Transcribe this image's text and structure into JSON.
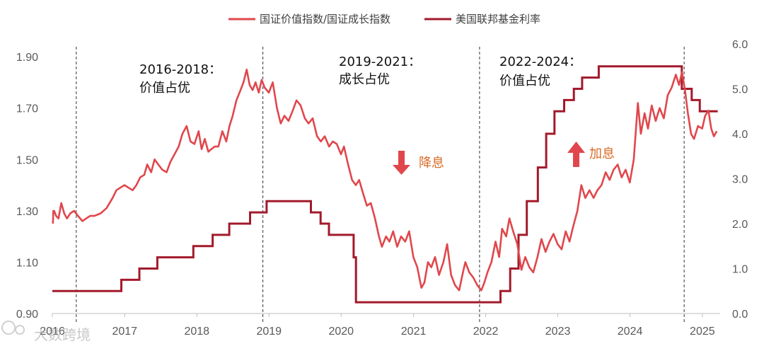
{
  "chart_data": {
    "type": "line",
    "colors": {
      "ratio": "#e0474c",
      "fed": "#a21a2b",
      "arrow_down": "#e0474c",
      "arrow_up": "#e0474c",
      "signal_text": "#d86b25"
    },
    "series": [
      {
        "name": "国证价值指数/国证成长指数",
        "axis": "left",
        "points": [
          [
            "2016-01-04",
            1.25
          ],
          [
            "2016-01-06",
            1.3
          ],
          [
            "2016-01-10",
            1.3
          ],
          [
            "2016-01-20",
            1.28
          ],
          [
            "2016-02-01",
            1.27
          ],
          [
            "2016-02-15",
            1.33
          ],
          [
            "2016-03-01",
            1.29
          ],
          [
            "2016-03-15",
            1.27
          ],
          [
            "2016-04-01",
            1.29
          ],
          [
            "2016-04-20",
            1.3
          ],
          [
            "2016-05-10",
            1.28
          ],
          [
            "2016-06-01",
            1.26
          ],
          [
            "2016-06-20",
            1.27
          ],
          [
            "2016-07-10",
            1.28
          ],
          [
            "2016-08-01",
            1.28
          ],
          [
            "2016-09-01",
            1.29
          ],
          [
            "2016-10-01",
            1.31
          ],
          [
            "2016-11-01",
            1.35
          ],
          [
            "2016-11-20",
            1.38
          ],
          [
            "2016-12-10",
            1.39
          ],
          [
            "2016-12-31",
            1.4
          ],
          [
            "2017-01-20",
            1.39
          ],
          [
            "2017-02-10",
            1.38
          ],
          [
            "2017-03-01",
            1.4
          ],
          [
            "2017-03-20",
            1.43
          ],
          [
            "2017-04-10",
            1.44
          ],
          [
            "2017-04-25",
            1.48
          ],
          [
            "2017-05-15",
            1.45
          ],
          [
            "2017-06-01",
            1.5
          ],
          [
            "2017-06-20",
            1.48
          ],
          [
            "2017-07-10",
            1.46
          ],
          [
            "2017-08-01",
            1.45
          ],
          [
            "2017-08-20",
            1.49
          ],
          [
            "2017-09-10",
            1.52
          ],
          [
            "2017-10-01",
            1.55
          ],
          [
            "2017-10-20",
            1.6
          ],
          [
            "2017-11-10",
            1.63
          ],
          [
            "2017-11-30",
            1.57
          ],
          [
            "2017-12-20",
            1.56
          ],
          [
            "2018-01-10",
            1.61
          ],
          [
            "2018-01-25",
            1.54
          ],
          [
            "2018-02-10",
            1.58
          ],
          [
            "2018-02-28",
            1.53
          ],
          [
            "2018-03-15",
            1.54
          ],
          [
            "2018-04-01",
            1.55
          ],
          [
            "2018-04-20",
            1.55
          ],
          [
            "2018-05-10",
            1.61
          ],
          [
            "2018-05-30",
            1.57
          ],
          [
            "2018-06-15",
            1.63
          ],
          [
            "2018-07-01",
            1.67
          ],
          [
            "2018-07-20",
            1.73
          ],
          [
            "2018-08-10",
            1.77
          ],
          [
            "2018-08-25",
            1.8
          ],
          [
            "2018-09-10",
            1.85
          ],
          [
            "2018-09-25",
            1.79
          ],
          [
            "2018-10-10",
            1.77
          ],
          [
            "2018-10-25",
            1.8
          ],
          [
            "2018-11-10",
            1.76
          ],
          [
            "2018-11-25",
            1.81
          ],
          [
            "2018-12-10",
            1.78
          ],
          [
            "2018-12-31",
            1.76
          ],
          [
            "2019-01-20",
            1.8
          ],
          [
            "2019-02-10",
            1.7
          ],
          [
            "2019-03-01",
            1.64
          ],
          [
            "2019-03-20",
            1.67
          ],
          [
            "2019-04-10",
            1.65
          ],
          [
            "2019-05-01",
            1.69
          ],
          [
            "2019-05-20",
            1.73
          ],
          [
            "2019-06-10",
            1.71
          ],
          [
            "2019-07-01",
            1.66
          ],
          [
            "2019-07-20",
            1.64
          ],
          [
            "2019-08-10",
            1.66
          ],
          [
            "2019-09-01",
            1.59
          ],
          [
            "2019-09-20",
            1.57
          ],
          [
            "2019-10-10",
            1.59
          ],
          [
            "2019-11-01",
            1.55
          ],
          [
            "2019-11-20",
            1.57
          ],
          [
            "2019-12-10",
            1.56
          ],
          [
            "2019-12-31",
            1.52
          ],
          [
            "2020-01-15",
            1.55
          ],
          [
            "2020-02-05",
            1.48
          ],
          [
            "2020-02-25",
            1.42
          ],
          [
            "2020-03-15",
            1.4
          ],
          [
            "2020-04-01",
            1.42
          ],
          [
            "2020-04-20",
            1.37
          ],
          [
            "2020-05-10",
            1.32
          ],
          [
            "2020-05-30",
            1.33
          ],
          [
            "2020-06-20",
            1.27
          ],
          [
            "2020-07-10",
            1.2
          ],
          [
            "2020-07-25",
            1.16
          ],
          [
            "2020-08-15",
            1.2
          ],
          [
            "2020-09-01",
            1.18
          ],
          [
            "2020-09-20",
            1.22
          ],
          [
            "2020-10-10",
            1.16
          ],
          [
            "2020-10-30",
            1.2
          ],
          [
            "2020-11-20",
            1.18
          ],
          [
            "2020-12-10",
            1.22
          ],
          [
            "2020-12-31",
            1.12
          ],
          [
            "2021-01-20",
            1.08
          ],
          [
            "2021-02-10",
            1.0
          ],
          [
            "2021-02-25",
            1.02
          ],
          [
            "2021-03-15",
            1.1
          ],
          [
            "2021-04-01",
            1.08
          ],
          [
            "2021-04-20",
            1.12
          ],
          [
            "2021-05-10",
            1.05
          ],
          [
            "2021-06-01",
            1.1
          ],
          [
            "2021-06-20",
            1.17
          ],
          [
            "2021-07-10",
            1.05
          ],
          [
            "2021-07-30",
            1.01
          ],
          [
            "2021-08-20",
            0.99
          ],
          [
            "2021-09-05",
            1.05
          ],
          [
            "2021-09-20",
            1.1
          ],
          [
            "2021-10-10",
            1.06
          ],
          [
            "2021-10-30",
            1.04
          ],
          [
            "2021-11-20",
            1.01
          ],
          [
            "2021-12-10",
            0.99
          ],
          [
            "2021-12-25",
            1.02
          ],
          [
            "2022-01-10",
            1.06
          ],
          [
            "2022-01-30",
            1.1
          ],
          [
            "2022-02-20",
            1.18
          ],
          [
            "2022-03-10",
            1.12
          ],
          [
            "2022-03-25",
            1.23
          ],
          [
            "2022-04-15",
            1.2
          ],
          [
            "2022-05-01",
            1.27
          ],
          [
            "2022-05-20",
            1.22
          ],
          [
            "2022-06-10",
            1.17
          ],
          [
            "2022-07-01",
            1.07
          ],
          [
            "2022-07-20",
            1.12
          ],
          [
            "2022-08-10",
            1.08
          ],
          [
            "2022-08-30",
            1.06
          ],
          [
            "2022-09-20",
            1.12
          ],
          [
            "2022-10-10",
            1.19
          ],
          [
            "2022-10-31",
            1.14
          ],
          [
            "2022-11-20",
            1.18
          ],
          [
            "2022-12-10",
            1.21
          ],
          [
            "2022-12-31",
            1.17
          ],
          [
            "2023-01-20",
            1.15
          ],
          [
            "2023-02-10",
            1.22
          ],
          [
            "2023-03-01",
            1.18
          ],
          [
            "2023-03-20",
            1.24
          ],
          [
            "2023-04-10",
            1.3
          ],
          [
            "2023-04-30",
            1.4
          ],
          [
            "2023-05-20",
            1.35
          ],
          [
            "2023-06-10",
            1.38
          ],
          [
            "2023-07-01",
            1.35
          ],
          [
            "2023-07-20",
            1.38
          ],
          [
            "2023-08-10",
            1.4
          ],
          [
            "2023-08-31",
            1.45
          ],
          [
            "2023-09-20",
            1.42
          ],
          [
            "2023-10-10",
            1.46
          ],
          [
            "2023-10-31",
            1.48
          ],
          [
            "2023-11-20",
            1.43
          ],
          [
            "2023-12-10",
            1.46
          ],
          [
            "2023-12-31",
            1.41
          ],
          [
            "2024-01-20",
            1.5
          ],
          [
            "2024-02-10",
            1.72
          ],
          [
            "2024-02-25",
            1.6
          ],
          [
            "2024-03-15",
            1.68
          ],
          [
            "2024-04-01",
            1.62
          ],
          [
            "2024-04-20",
            1.71
          ],
          [
            "2024-05-10",
            1.65
          ],
          [
            "2024-05-30",
            1.7
          ],
          [
            "2024-06-20",
            1.66
          ],
          [
            "2024-07-10",
            1.75
          ],
          [
            "2024-07-30",
            1.78
          ],
          [
            "2024-08-20",
            1.83
          ],
          [
            "2024-09-05",
            1.79
          ],
          [
            "2024-09-20",
            1.84
          ],
          [
            "2024-10-05",
            1.77
          ],
          [
            "2024-10-20",
            1.68
          ],
          [
            "2024-11-05",
            1.6
          ],
          [
            "2024-11-20",
            1.58
          ],
          [
            "2024-12-10",
            1.63
          ],
          [
            "2024-12-31",
            1.62
          ],
          [
            "2025-01-15",
            1.67
          ],
          [
            "2025-02-01",
            1.69
          ],
          [
            "2025-02-15",
            1.62
          ],
          [
            "2025-02-28",
            1.59
          ],
          [
            "2025-03-15",
            1.61
          ]
        ]
      },
      {
        "name": "美国联邦基金利率",
        "axis": "right",
        "step": true,
        "points": [
          [
            "2016-01-01",
            0.5
          ],
          [
            "2016-12-15",
            0.75
          ],
          [
            "2017-03-16",
            1.0
          ],
          [
            "2017-06-15",
            1.25
          ],
          [
            "2017-12-14",
            1.5
          ],
          [
            "2018-03-22",
            1.75
          ],
          [
            "2018-06-14",
            2.0
          ],
          [
            "2018-09-27",
            2.25
          ],
          [
            "2018-12-20",
            2.5
          ],
          [
            "2019-08-01",
            2.25
          ],
          [
            "2019-09-19",
            2.0
          ],
          [
            "2019-10-31",
            1.75
          ],
          [
            "2020-03-04",
            1.25
          ],
          [
            "2020-03-16",
            0.25
          ],
          [
            "2022-03-17",
            0.5
          ],
          [
            "2022-05-05",
            1.0
          ],
          [
            "2022-06-16",
            1.75
          ],
          [
            "2022-07-28",
            2.5
          ],
          [
            "2022-09-22",
            3.25
          ],
          [
            "2022-11-03",
            4.0
          ],
          [
            "2022-12-15",
            4.5
          ],
          [
            "2023-02-02",
            4.75
          ],
          [
            "2023-03-23",
            5.0
          ],
          [
            "2023-05-04",
            5.25
          ],
          [
            "2023-07-27",
            5.5
          ],
          [
            "2024-09-19",
            5.0
          ],
          [
            "2024-11-08",
            4.75
          ],
          [
            "2024-12-19",
            4.5
          ],
          [
            "2025-03-20",
            4.5
          ]
        ]
      }
    ],
    "y_left": {
      "range": [
        0.9,
        1.95
      ],
      "ticks": [
        "0.90",
        "1.10",
        "1.30",
        "1.50",
        "1.70",
        "1.90"
      ]
    },
    "y_right": {
      "range": [
        0.0,
        6.0
      ],
      "ticks": [
        "0.0",
        "1.0",
        "2.0",
        "3.0",
        "4.0",
        "5.0",
        "6.0"
      ]
    },
    "x_range": [
      "2016-01-01",
      "2025-04-01"
    ],
    "x_ticks": [
      "2016",
      "2017",
      "2018",
      "2019",
      "2020",
      "2021",
      "2022",
      "2023",
      "2024",
      "2025"
    ],
    "dividers": [
      "2016-05-01",
      "2018-12-01",
      "2021-12-01",
      "2024-10-01"
    ],
    "annotations": [
      {
        "line1": "2016-2018：",
        "line2": "价值占优"
      },
      {
        "line1": "2019-2021：",
        "line2": "成长占优"
      },
      {
        "line1": "2022-2024：",
        "line2": "价值占优"
      }
    ],
    "signals": [
      {
        "label": "降息",
        "direction": "down"
      },
      {
        "label": "加息",
        "direction": "up"
      }
    ],
    "legend_position": "top-center",
    "grid": false
  },
  "watermark": "大数跨境"
}
